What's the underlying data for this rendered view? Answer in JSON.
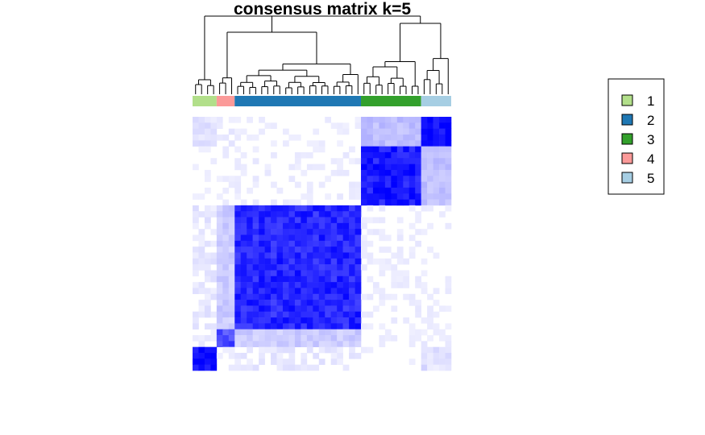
{
  "chart_data": {
    "type": "heatmap",
    "title": "consensus matrix k=5",
    "colorscale": {
      "low": "#FFFFFF",
      "high": "#0000FF"
    },
    "clusters": [
      {
        "label": "1",
        "color": "#B2DF8A",
        "size": 4
      },
      {
        "label": "4",
        "color": "#FB9A99",
        "size": 3
      },
      {
        "label": "2",
        "color": "#1F78B4",
        "size": 21
      },
      {
        "label": "3",
        "color": "#33A02C",
        "size": 10
      },
      {
        "label": "5",
        "color": "#A6CEE3",
        "size": 5
      }
    ],
    "block_consensus": [
      [
        0.96,
        0.05,
        0.08,
        0.02,
        0.12
      ],
      [
        0.05,
        0.7,
        0.2,
        0.03,
        0.05
      ],
      [
        0.08,
        0.2,
        0.85,
        0.04,
        0.03
      ],
      [
        0.02,
        0.03,
        0.04,
        0.9,
        0.25
      ],
      [
        0.12,
        0.05,
        0.03,
        0.25,
        0.97
      ]
    ],
    "legend": {
      "position": "right",
      "entries": [
        {
          "label": "1",
          "color": "#B2DF8A"
        },
        {
          "label": "2",
          "color": "#1F78B4"
        },
        {
          "label": "3",
          "color": "#33A02C"
        },
        {
          "label": "4",
          "color": "#FB9A99"
        },
        {
          "label": "5",
          "color": "#A6CEE3"
        }
      ]
    }
  }
}
